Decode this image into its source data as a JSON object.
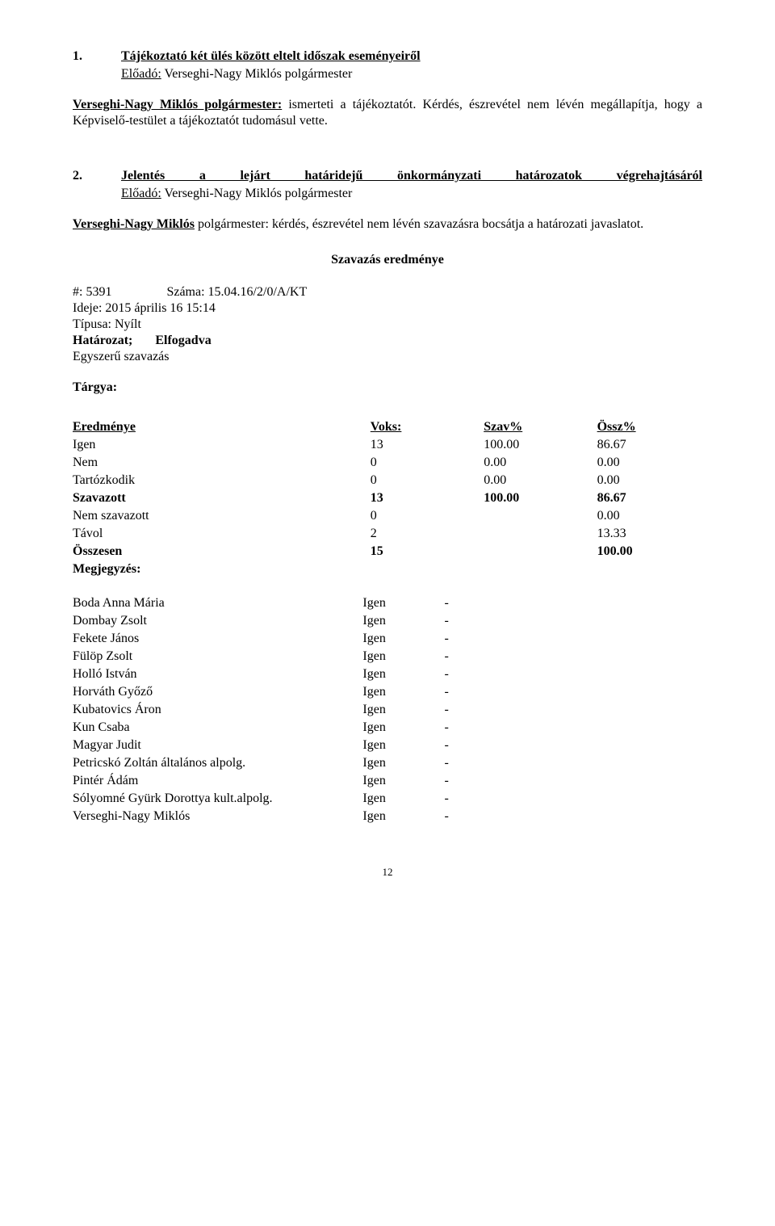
{
  "item1": {
    "number": "1.",
    "title": "Tájékoztató két ülés között eltelt időszak eseményeiről",
    "eloado_label": "Előadó:",
    "eloado_name": "Verseghi-Nagy Miklós polgármester",
    "para_lead": "Verseghi-Nagy Miklós polgármester:",
    "para_text": " ismerteti a tájékoztatót. Kérdés, észrevétel nem lévén megállapítja, hogy a Képviselő-testület a tájékoztatót tudomásul vette."
  },
  "item2": {
    "number": "2.",
    "title": "Jelentés a lejárt határidejű önkormányzati határozatok végrehajtásáról",
    "eloado_label": "Előadó:",
    "eloado_name": "Verseghi-Nagy Miklós polgármester",
    "para_lead": "Verseghi-Nagy Miklós",
    "para_text": " polgármester: kérdés, észrevétel nem lévén szavazásra bocsátja a határozati javaslatot."
  },
  "szavazas": {
    "title": "Szavazás eredménye",
    "meta": {
      "hash_label": "#: ",
      "hash": "5391",
      "szama_label": "Száma: ",
      "szama": "15.04.16/2/0/A/KT",
      "ideje_label": "Ideje: ",
      "ideje": "2015 április 16 15:14",
      "tipus_label": "Típusa: ",
      "tipus": "Nyílt",
      "hatarozat": "Határozat;",
      "elfogadva": "Elfogadva",
      "egyszeru": "Egyszerű szavazás"
    },
    "targya_label": "Tárgya:"
  },
  "results": {
    "header": [
      "Eredménye",
      "Voks:",
      "Szav%",
      "Össz%"
    ],
    "rows": [
      {
        "cells": [
          "Igen",
          "13",
          "100.00",
          "86.67"
        ],
        "bold": false
      },
      {
        "cells": [
          "Nem",
          "0",
          "0.00",
          "0.00"
        ],
        "bold": false
      },
      {
        "cells": [
          "Tartózkodik",
          "0",
          "0.00",
          "0.00"
        ],
        "bold": false
      },
      {
        "cells": [
          "Szavazott",
          "13",
          "100.00",
          "86.67"
        ],
        "bold": true
      },
      {
        "cells": [
          "Nem szavazott",
          "0",
          "",
          "0.00"
        ],
        "bold": false
      },
      {
        "cells": [
          "Távol",
          "2",
          "",
          "13.33"
        ],
        "bold": false
      },
      {
        "cells": [
          "Összesen",
          "15",
          "",
          "100.00"
        ],
        "bold": true
      }
    ],
    "megj": "Megjegyzés:"
  },
  "votes": [
    {
      "name": "Boda Anna Mária",
      "vote": "Igen",
      "mark": "-"
    },
    {
      "name": "Dombay Zsolt",
      "vote": "Igen",
      "mark": "-"
    },
    {
      "name": "Fekete János",
      "vote": "Igen",
      "mark": "-"
    },
    {
      "name": "Fülöp Zsolt",
      "vote": "Igen",
      "mark": "-"
    },
    {
      "name": "Holló István",
      "vote": "Igen",
      "mark": "-"
    },
    {
      "name": "Horváth Győző",
      "vote": "Igen",
      "mark": "-"
    },
    {
      "name": "Kubatovics Áron",
      "vote": "Igen",
      "mark": "-"
    },
    {
      "name": "Kun Csaba",
      "vote": "Igen",
      "mark": "-"
    },
    {
      "name": "Magyar Judit",
      "vote": "Igen",
      "mark": "-"
    },
    {
      "name": "Petricskó Zoltán általános alpolg.",
      "vote": "Igen",
      "mark": "-"
    },
    {
      "name": "Pintér Ádám",
      "vote": "Igen",
      "mark": "-"
    },
    {
      "name": "Sólyomné Gyürk Dorottya kult.alpolg.",
      "vote": "Igen",
      "mark": "-"
    },
    {
      "name": "Verseghi-Nagy Miklós",
      "vote": "Igen",
      "mark": "-"
    }
  ],
  "page_number": "12"
}
